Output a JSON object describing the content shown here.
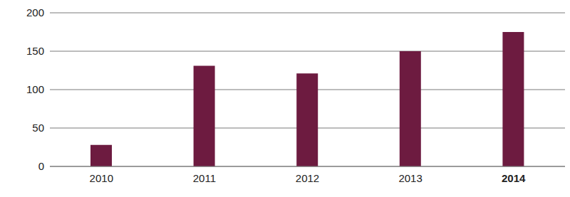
{
  "chart_data": {
    "type": "bar",
    "categories": [
      "2010",
      "2011",
      "2012",
      "2013",
      "2014"
    ],
    "values": [
      28,
      131,
      121,
      150,
      175
    ],
    "color": "#6d1b40",
    "ylim": [
      0,
      200
    ],
    "yticks": [
      0,
      50,
      100,
      150,
      200
    ],
    "grid": true
  }
}
